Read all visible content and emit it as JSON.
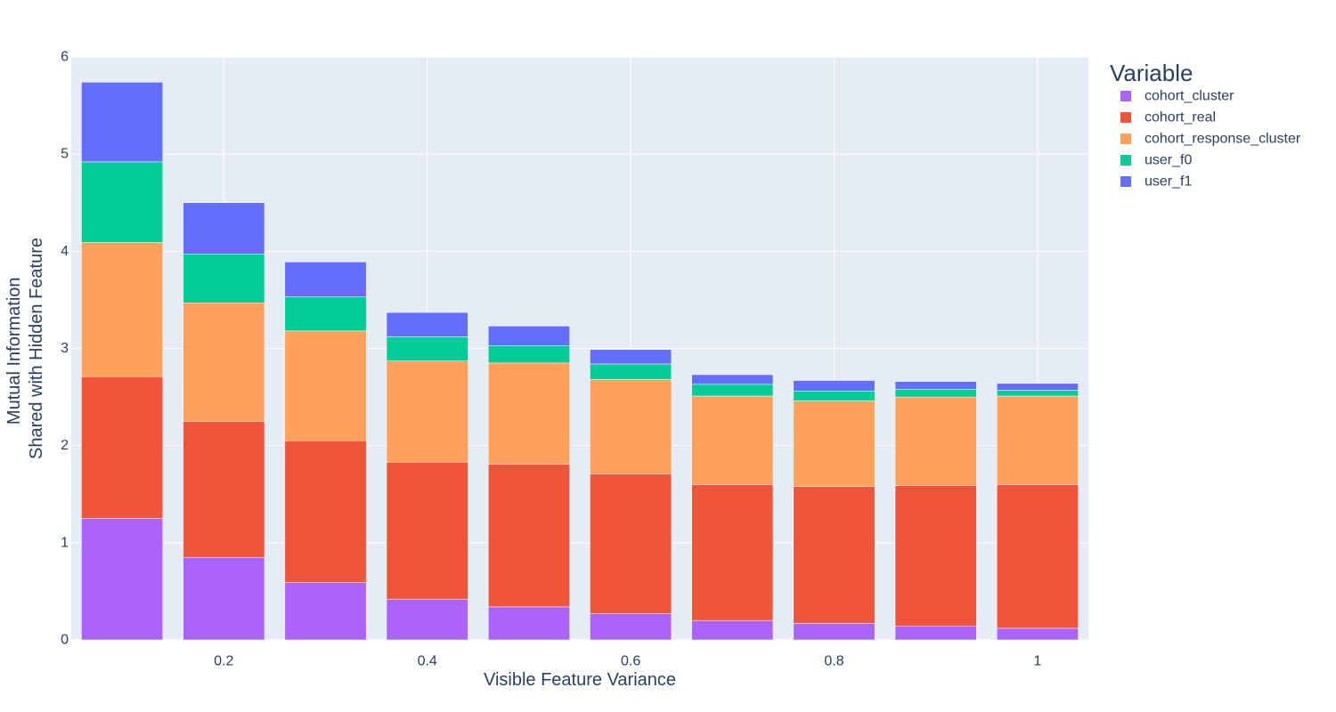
{
  "chart_data": {
    "type": "bar",
    "barmode": "stack",
    "x": [
      0.1,
      0.2,
      0.3,
      0.4,
      0.5,
      0.6,
      0.7,
      0.8,
      0.9,
      1.0
    ],
    "xlabel": "Visible Feature Variance",
    "ylabel_lines": [
      "Mutual Information",
      "Shared with Hidden Feature"
    ],
    "xlim": [
      0.05,
      1.05
    ],
    "ylim": [
      0,
      6
    ],
    "x_ticks": [
      0.2,
      0.4,
      0.6,
      0.8,
      1
    ],
    "x_tick_labels": [
      "0.2",
      "0.4",
      "0.6",
      "0.8",
      "1"
    ],
    "y_ticks": [
      0,
      1,
      2,
      3,
      4,
      5,
      6
    ],
    "y_tick_labels": [
      "0",
      "1",
      "2",
      "3",
      "4",
      "5",
      "6"
    ],
    "grid": true,
    "plot_background": "#E5ECF6",
    "legend": {
      "title": "Variable",
      "position": "right"
    },
    "series": [
      {
        "name": "cohort_cluster",
        "color": "#AB63FA",
        "values": [
          1.25,
          0.85,
          0.59,
          0.42,
          0.34,
          0.27,
          0.2,
          0.17,
          0.14,
          0.12
        ]
      },
      {
        "name": "cohort_real",
        "color": "#EF553B",
        "values": [
          1.46,
          1.4,
          1.46,
          1.41,
          1.47,
          1.44,
          1.4,
          1.41,
          1.45,
          1.48
        ]
      },
      {
        "name": "cohort_response_cluster",
        "color": "#FFA15A",
        "values": [
          1.38,
          1.22,
          1.13,
          1.04,
          1.04,
          0.97,
          0.91,
          0.88,
          0.91,
          0.91
        ]
      },
      {
        "name": "user_f0",
        "color": "#00CC96",
        "values": [
          0.83,
          0.5,
          0.35,
          0.25,
          0.18,
          0.16,
          0.12,
          0.1,
          0.08,
          0.06
        ]
      },
      {
        "name": "user_f1",
        "color": "#636EFA",
        "values": [
          0.82,
          0.53,
          0.36,
          0.25,
          0.2,
          0.15,
          0.1,
          0.11,
          0.08,
          0.07
        ]
      }
    ]
  }
}
